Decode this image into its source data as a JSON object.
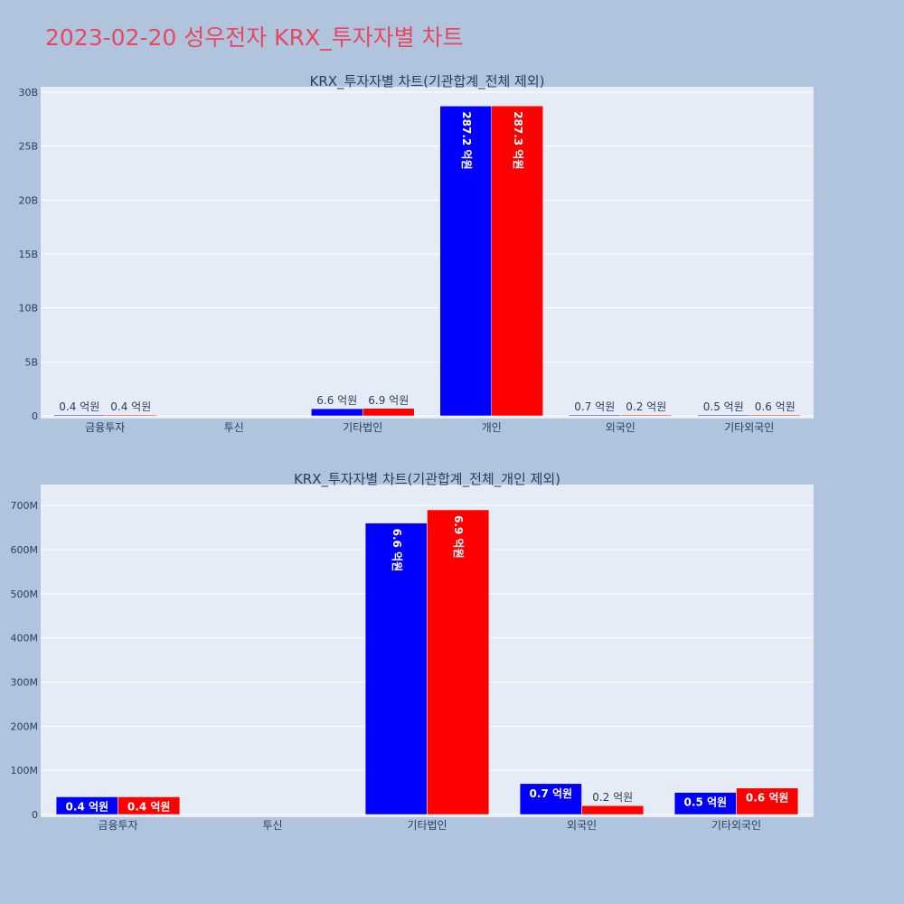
{
  "page": {
    "title": "2023-02-20 성우전자 KRX_투자자별 차트"
  },
  "colors": {
    "background": "#b0c4de",
    "plot_background": "#e5ecf6",
    "title": "#e8475f",
    "text": "#2a3f5f",
    "series_blue": "#0000ff",
    "series_red": "#ff0000"
  },
  "chart_data": [
    {
      "type": "bar",
      "title": "KRX_투자자별 차트(기관합계_전체 제외)",
      "categories": [
        "금융투자",
        "투신",
        "기타법인",
        "개인",
        "외국인",
        "기타외국인"
      ],
      "series": [
        {
          "color": "#0000ff",
          "values": [
            40000000,
            0,
            660000000,
            28720000000,
            70000000,
            50000000
          ],
          "labels": [
            "0.4 억원",
            "",
            "6.6 억원",
            "287.2 억원",
            "0.7 억원",
            "0.5 억원"
          ]
        },
        {
          "color": "#ff0000",
          "values": [
            40000000,
            0,
            690000000,
            28730000000,
            20000000,
            60000000
          ],
          "labels": [
            "0.4 억원",
            "",
            "6.9 억원",
            "287.3 억원",
            "0.2 억원",
            "0.6 억원"
          ]
        }
      ],
      "ylim": [
        0,
        30000000000
      ],
      "yticks": [
        {
          "value": 0,
          "label": "0"
        },
        {
          "value": 5000000000,
          "label": "5B"
        },
        {
          "value": 10000000000,
          "label": "10B"
        },
        {
          "value": 15000000000,
          "label": "15B"
        },
        {
          "value": 20000000000,
          "label": "20B"
        },
        {
          "value": 25000000000,
          "label": "25B"
        },
        {
          "value": 30000000000,
          "label": "30B"
        }
      ],
      "grid": true,
      "legend": "none"
    },
    {
      "type": "bar",
      "title": "KRX_투자자별 차트(기관합계_전체_개인 제외)",
      "categories": [
        "금융투자",
        "투신",
        "기타법인",
        "외국인",
        "기타외국인"
      ],
      "series": [
        {
          "color": "#0000ff",
          "values": [
            40000000,
            0,
            660000000,
            70000000,
            50000000
          ],
          "labels": [
            "0.4 억원",
            "",
            "6.6 억원",
            "0.7 억원",
            "0.5 억원"
          ]
        },
        {
          "color": "#ff0000",
          "values": [
            40000000,
            0,
            690000000,
            20000000,
            60000000
          ],
          "labels": [
            "0.4 억원",
            "",
            "6.9 억원",
            "0.2 억원",
            "0.6 억원"
          ]
        }
      ],
      "ylim": [
        0,
        735000000
      ],
      "yticks": [
        {
          "value": 0,
          "label": "0"
        },
        {
          "value": 100000000,
          "label": "100M"
        },
        {
          "value": 200000000,
          "label": "200M"
        },
        {
          "value": 300000000,
          "label": "300M"
        },
        {
          "value": 400000000,
          "label": "400M"
        },
        {
          "value": 500000000,
          "label": "500M"
        },
        {
          "value": 600000000,
          "label": "600M"
        },
        {
          "value": 700000000,
          "label": "700M"
        }
      ],
      "grid": true,
      "legend": "none"
    }
  ]
}
